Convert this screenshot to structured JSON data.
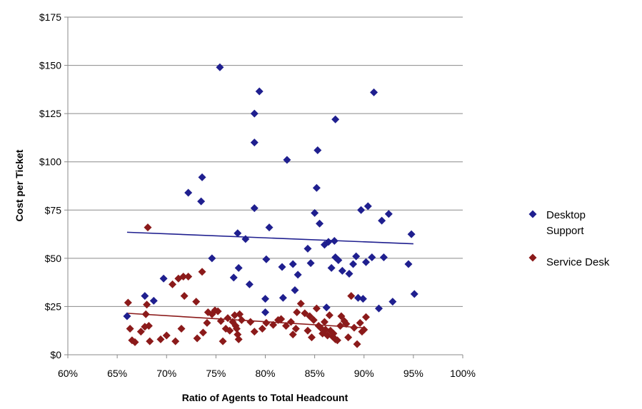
{
  "chart_data": {
    "type": "scatter",
    "title": "",
    "xlabel": "Ratio of Agents to Total Headcount",
    "ylabel": "Cost per Ticket",
    "xlim": [
      0.6,
      1.0
    ],
    "ylim": [
      0,
      175
    ],
    "x_ticks": [
      {
        "value": 0.6,
        "label": "60%"
      },
      {
        "value": 0.65,
        "label": "65%"
      },
      {
        "value": 0.7,
        "label": "70%"
      },
      {
        "value": 0.75,
        "label": "75%"
      },
      {
        "value": 0.8,
        "label": "80%"
      },
      {
        "value": 0.85,
        "label": "85%"
      },
      {
        "value": 0.9,
        "label": "90%"
      },
      {
        "value": 0.95,
        "label": "95%"
      },
      {
        "value": 1.0,
        "label": "100%"
      }
    ],
    "y_ticks": [
      {
        "value": 0,
        "label": "$0"
      },
      {
        "value": 25,
        "label": "$25"
      },
      {
        "value": 50,
        "label": "$50"
      },
      {
        "value": 75,
        "label": "$75"
      },
      {
        "value": 100,
        "label": "$100"
      },
      {
        "value": 125,
        "label": "$125"
      },
      {
        "value": 150,
        "label": "$150"
      },
      {
        "value": 175,
        "label": "$175"
      }
    ],
    "grid": "horizontal",
    "legend": "right",
    "series": [
      {
        "name": "Desktop Support",
        "color": "#1f1f8f",
        "marker": "diamond",
        "trendline": [
          [
            0.66,
            63.5
          ],
          [
            0.95,
            57.5
          ]
        ],
        "points": [
          [
            0.66,
            20
          ],
          [
            0.678,
            30.5
          ],
          [
            0.687,
            28
          ],
          [
            0.697,
            39.5
          ],
          [
            0.722,
            84
          ],
          [
            0.735,
            79.5
          ],
          [
            0.736,
            92
          ],
          [
            0.746,
            50
          ],
          [
            0.754,
            149
          ],
          [
            0.768,
            40
          ],
          [
            0.772,
            63
          ],
          [
            0.773,
            45
          ],
          [
            0.78,
            60
          ],
          [
            0.784,
            36.5
          ],
          [
            0.789,
            125
          ],
          [
            0.789,
            110
          ],
          [
            0.789,
            76
          ],
          [
            0.794,
            136.5
          ],
          [
            0.8,
            29
          ],
          [
            0.8,
            22
          ],
          [
            0.801,
            49.5
          ],
          [
            0.804,
            66
          ],
          [
            0.817,
            45.5
          ],
          [
            0.818,
            29.5
          ],
          [
            0.822,
            101
          ],
          [
            0.828,
            47
          ],
          [
            0.83,
            33.5
          ],
          [
            0.833,
            41.5
          ],
          [
            0.843,
            55
          ],
          [
            0.846,
            47.5
          ],
          [
            0.85,
            73.5
          ],
          [
            0.852,
            86.5
          ],
          [
            0.853,
            106
          ],
          [
            0.855,
            68
          ],
          [
            0.86,
            57
          ],
          [
            0.862,
            24.5
          ],
          [
            0.864,
            58.5
          ],
          [
            0.867,
            45
          ],
          [
            0.87,
            59
          ],
          [
            0.871,
            122
          ],
          [
            0.871,
            50.5
          ],
          [
            0.874,
            49
          ],
          [
            0.878,
            43.5
          ],
          [
            0.885,
            42
          ],
          [
            0.889,
            47
          ],
          [
            0.892,
            51
          ],
          [
            0.894,
            29.5
          ],
          [
            0.897,
            75
          ],
          [
            0.899,
            29
          ],
          [
            0.902,
            48
          ],
          [
            0.904,
            77
          ],
          [
            0.908,
            50.5
          ],
          [
            0.91,
            136
          ],
          [
            0.915,
            24
          ],
          [
            0.918,
            69.5
          ],
          [
            0.92,
            50.5
          ],
          [
            0.925,
            73
          ],
          [
            0.929,
            27.5
          ],
          [
            0.945,
            47
          ],
          [
            0.948,
            62.5
          ],
          [
            0.951,
            31.5
          ]
        ]
      },
      {
        "name": "Service Desk",
        "color": "#8b1a1a",
        "marker": "diamond",
        "trendline": [
          [
            0.66,
            21.5
          ],
          [
            0.9,
            14
          ]
        ],
        "points": [
          [
            0.661,
            27
          ],
          [
            0.663,
            13.5
          ],
          [
            0.665,
            7.5
          ],
          [
            0.668,
            6.5
          ],
          [
            0.674,
            12
          ],
          [
            0.678,
            14.5
          ],
          [
            0.679,
            21
          ],
          [
            0.68,
            26
          ],
          [
            0.681,
            66
          ],
          [
            0.682,
            15
          ],
          [
            0.683,
            7
          ],
          [
            0.694,
            8
          ],
          [
            0.7,
            10
          ],
          [
            0.706,
            36.5
          ],
          [
            0.709,
            7
          ],
          [
            0.712,
            39.5
          ],
          [
            0.715,
            13.5
          ],
          [
            0.717,
            40.5
          ],
          [
            0.718,
            30.5
          ],
          [
            0.722,
            40.5
          ],
          [
            0.73,
            27.5
          ],
          [
            0.731,
            8.5
          ],
          [
            0.736,
            43
          ],
          [
            0.737,
            11.5
          ],
          [
            0.741,
            16.5
          ],
          [
            0.742,
            22
          ],
          [
            0.746,
            21
          ],
          [
            0.749,
            23
          ],
          [
            0.752,
            22.5
          ],
          [
            0.755,
            17.5
          ],
          [
            0.757,
            7
          ],
          [
            0.76,
            13.5
          ],
          [
            0.762,
            19
          ],
          [
            0.764,
            12.5
          ],
          [
            0.767,
            17
          ],
          [
            0.769,
            20.5
          ],
          [
            0.77,
            15
          ],
          [
            0.771,
            13.5
          ],
          [
            0.772,
            10.5
          ],
          [
            0.773,
            8
          ],
          [
            0.774,
            21
          ],
          [
            0.776,
            18
          ],
          [
            0.785,
            17
          ],
          [
            0.789,
            12
          ],
          [
            0.797,
            13.5
          ],
          [
            0.801,
            16.5
          ],
          [
            0.808,
            15.5
          ],
          [
            0.813,
            18
          ],
          [
            0.816,
            18.5
          ],
          [
            0.821,
            15
          ],
          [
            0.826,
            17
          ],
          [
            0.828,
            10.5
          ],
          [
            0.831,
            13.5
          ],
          [
            0.832,
            22
          ],
          [
            0.836,
            26.5
          ],
          [
            0.84,
            21.5
          ],
          [
            0.843,
            12.5
          ],
          [
            0.845,
            20
          ],
          [
            0.847,
            9
          ],
          [
            0.849,
            18
          ],
          [
            0.852,
            24
          ],
          [
            0.854,
            15
          ],
          [
            0.856,
            14
          ],
          [
            0.858,
            11
          ],
          [
            0.86,
            17
          ],
          [
            0.861,
            13
          ],
          [
            0.863,
            10
          ],
          [
            0.865,
            20.5
          ],
          [
            0.866,
            12.5
          ],
          [
            0.868,
            9.5
          ],
          [
            0.869,
            11
          ],
          [
            0.871,
            8
          ],
          [
            0.873,
            7.5
          ],
          [
            0.876,
            15
          ],
          [
            0.877,
            20
          ],
          [
            0.88,
            17.5
          ],
          [
            0.882,
            16
          ],
          [
            0.884,
            9
          ],
          [
            0.887,
            30.5
          ],
          [
            0.89,
            14
          ],
          [
            0.893,
            5.5
          ],
          [
            0.896,
            16.5
          ],
          [
            0.898,
            12
          ],
          [
            0.9,
            13
          ],
          [
            0.902,
            19.5
          ]
        ]
      }
    ]
  }
}
